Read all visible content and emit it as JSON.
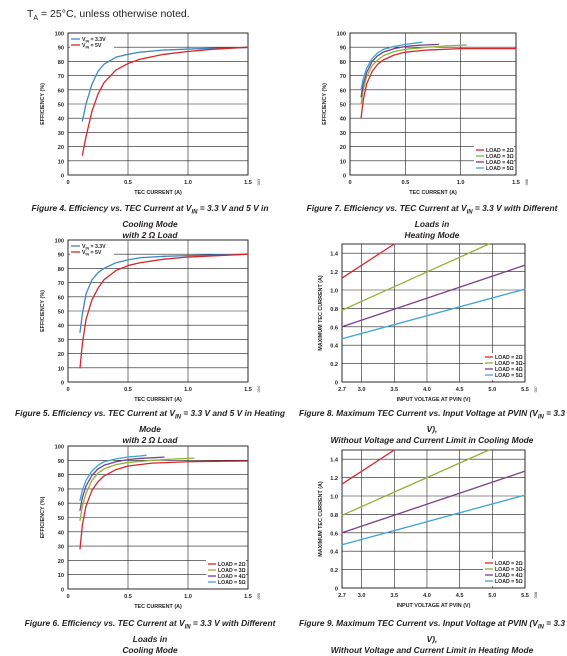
{
  "header": {
    "pre": "T",
    "sub": "A",
    "post": " = 25°C, unless otherwise noted."
  },
  "colors": {
    "red": "#d7262b",
    "green": "#8db33a",
    "purple": "#7a3e8f",
    "blue": "#3f88c5",
    "sky": "#3ea3d9",
    "grid": "#231f20"
  },
  "chart_data": [
    {
      "id": "fig4",
      "type": "line",
      "caption": {
        "a": "Figure 4. Efficiency vs. TEC Current at V",
        "sub": "IN",
        "b": " = 3.3 V and 5 V in Cooling Mode",
        "line2": "with 2 Ω Load"
      },
      "xlabel": "TEC CURRENT (A)",
      "ylabel": "EFFICIENCY (%)",
      "xlim": [
        0,
        1.5
      ],
      "ylim": [
        0,
        100
      ],
      "xticks": [
        0,
        0.5,
        1.0,
        1.5
      ],
      "xtick_labels": [
        "0",
        "0.5",
        "1.0",
        "1.5"
      ],
      "yticks": [
        0,
        10,
        20,
        30,
        40,
        50,
        60,
        70,
        80,
        90,
        100
      ],
      "ytick_labels": [
        "0",
        "10",
        "20",
        "30",
        "40",
        "50",
        "60",
        "70",
        "80",
        "90",
        "100"
      ],
      "grid": true,
      "legend_position": "top-left",
      "side_label": "003",
      "series": [
        {
          "name": "VIN = 3.3V",
          "label_main": "V",
          "label_sub": "IN",
          "label_rest": " = 3.3V",
          "color": "#3f88c5",
          "x": [
            0.12,
            0.15,
            0.2,
            0.25,
            0.3,
            0.4,
            0.5,
            0.6,
            0.8,
            1.0,
            1.2,
            1.5
          ],
          "y": [
            38,
            50,
            64,
            73,
            78,
            83,
            85,
            86.5,
            88,
            88.7,
            89.2,
            89.7
          ]
        },
        {
          "name": "VIN = 5V",
          "label_main": "V",
          "label_sub": "IN",
          "label_rest": " = 5V",
          "color": "#d7262b",
          "x": [
            0.12,
            0.15,
            0.2,
            0.25,
            0.3,
            0.4,
            0.5,
            0.6,
            0.8,
            1.0,
            1.2,
            1.5
          ],
          "y": [
            14,
            27,
            45,
            57,
            65,
            74,
            78.5,
            81.5,
            85,
            87,
            88.5,
            90
          ]
        }
      ]
    },
    {
      "id": "fig7",
      "type": "line",
      "caption": {
        "a": "Figure 7. Efficiency vs. TEC Current at V",
        "sub": "IN",
        "b": " = 3.3 V with Different Loads in",
        "line2": "Heating Mode"
      },
      "xlabel": "TEC CURRENT (A)",
      "ylabel": "EFFICIENCY (%)",
      "xlim": [
        0,
        1.5
      ],
      "ylim": [
        0,
        100
      ],
      "xticks": [
        0,
        0.5,
        1.0,
        1.5
      ],
      "xtick_labels": [
        "0",
        "0.5",
        "1.0",
        "1.5"
      ],
      "yticks": [
        0,
        10,
        20,
        30,
        40,
        50,
        60,
        70,
        80,
        90,
        100
      ],
      "ytick_labels": [
        "0",
        "10",
        "20",
        "30",
        "40",
        "50",
        "60",
        "70",
        "80",
        "90",
        "100"
      ],
      "grid": true,
      "legend_position": "bottom-right",
      "side_label": "006",
      "series": [
        {
          "name": "LOAD = 2Ω",
          "color": "#d7262b",
          "x": [
            0.1,
            0.12,
            0.15,
            0.2,
            0.25,
            0.3,
            0.4,
            0.5,
            0.7,
            1.0,
            1.2,
            1.5
          ],
          "y": [
            40,
            53,
            64,
            73,
            78,
            81,
            84.5,
            86.5,
            88,
            89,
            89,
            89
          ]
        },
        {
          "name": "LOAD = 3Ω",
          "color": "#8db33a",
          "x": [
            0.1,
            0.12,
            0.15,
            0.2,
            0.25,
            0.3,
            0.4,
            0.5,
            0.7,
            0.9,
            1.05
          ],
          "y": [
            50,
            60,
            69,
            77,
            81,
            84,
            87,
            88.5,
            90,
            91,
            91.5
          ]
        },
        {
          "name": "LOAD = 4Ω",
          "color": "#7a3e8f",
          "x": [
            0.1,
            0.12,
            0.15,
            0.2,
            0.25,
            0.3,
            0.4,
            0.5,
            0.6,
            0.8
          ],
          "y": [
            55,
            64,
            72,
            80,
            84,
            86.5,
            89,
            90.5,
            91.3,
            92
          ]
        },
        {
          "name": "LOAD = 5Ω",
          "color": "#3ea3d9",
          "x": [
            0.1,
            0.12,
            0.15,
            0.2,
            0.25,
            0.3,
            0.4,
            0.5,
            0.6,
            0.65
          ],
          "y": [
            60,
            68,
            75,
            82,
            86,
            88.5,
            90.5,
            92,
            93,
            93.5
          ]
        }
      ]
    },
    {
      "id": "fig5",
      "type": "line",
      "caption": {
        "a": "Figure 5. Efficiency vs. TEC Current at V",
        "sub": "IN",
        "b": " = 3.3 V and 5 V in Heating Mode",
        "line2": "with 2 Ω Load"
      },
      "xlabel": "TEC CURRENT (A)",
      "ylabel": "EFFICIENCY (%)",
      "xlim": [
        0,
        1.5
      ],
      "ylim": [
        0,
        100
      ],
      "xticks": [
        0,
        0.5,
        1.0,
        1.5
      ],
      "xtick_labels": [
        "0",
        "0.5",
        "1.0",
        "1.5"
      ],
      "yticks": [
        0,
        10,
        20,
        30,
        40,
        50,
        60,
        70,
        80,
        90,
        100
      ],
      "ytick_labels": [
        "0",
        "10",
        "20",
        "30",
        "40",
        "50",
        "60",
        "70",
        "80",
        "90",
        "100"
      ],
      "grid": true,
      "legend_position": "top-left",
      "side_label": "004",
      "series": [
        {
          "name": "VIN = 3.3V",
          "label_main": "V",
          "label_sub": "IN",
          "label_rest": " = 3.3V",
          "color": "#3f88c5",
          "x": [
            0.1,
            0.12,
            0.15,
            0.2,
            0.25,
            0.3,
            0.4,
            0.5,
            0.6,
            0.8,
            1.0,
            1.5
          ],
          "y": [
            35,
            48,
            62,
            72,
            77,
            80,
            84,
            86,
            87.5,
            88.5,
            89,
            90
          ]
        },
        {
          "name": "VIN = 5V",
          "label_main": "V",
          "label_sub": "IN",
          "label_rest": " = 5V",
          "color": "#d7262b",
          "x": [
            0.1,
            0.12,
            0.15,
            0.2,
            0.25,
            0.3,
            0.4,
            0.5,
            0.6,
            0.8,
            1.0,
            1.5
          ],
          "y": [
            10,
            27,
            44,
            58,
            66,
            72,
            78.5,
            82,
            84,
            86.5,
            88,
            90
          ]
        }
      ]
    },
    {
      "id": "fig8",
      "type": "line",
      "caption": {
        "a": "Figure 8. Maximum TEC Current vs. Input Voltage at PVIN (V",
        "sub": "IN",
        "b": " = 3.3 V),",
        "line2": "Without Voltage and Current Limit in Cooling Mode"
      },
      "xlabel": "INPUT VOLTAGE AT PVIN (V)",
      "ylabel": "MAXIMUM TEC CURRENT (A)",
      "xlim": [
        2.7,
        5.5
      ],
      "ylim": [
        0,
        1.5
      ],
      "xticks": [
        2.7,
        3.0,
        3.5,
        4.0,
        4.5,
        5.0,
        5.5
      ],
      "xtick_labels": [
        "2.7",
        "3.0",
        "3.5",
        "4.0",
        "4.5",
        "5.0",
        "5.5"
      ],
      "yticks": [
        0,
        0.2,
        0.4,
        0.6,
        0.8,
        1.0,
        1.2,
        1.4
      ],
      "ytick_labels": [
        "0",
        "0.2",
        "0.4",
        "0.6",
        "0.8",
        "1.0",
        "1.2",
        "1.4"
      ],
      "grid": true,
      "legend_position": "bottom-right",
      "side_label": "007",
      "series": [
        {
          "name": "LOAD = 2Ω",
          "color": "#d7262b",
          "x": [
            2.7,
            3.5
          ],
          "y": [
            1.13,
            1.5
          ]
        },
        {
          "name": "LOAD = 3Ω",
          "color": "#8db33a",
          "x": [
            2.7,
            4.95
          ],
          "y": [
            0.78,
            1.5
          ]
        },
        {
          "name": "LOAD = 4Ω",
          "color": "#7a3e8f",
          "x": [
            2.7,
            5.5
          ],
          "y": [
            0.6,
            1.27
          ]
        },
        {
          "name": "LOAD = 5Ω",
          "color": "#3ea3d9",
          "x": [
            2.7,
            5.5
          ],
          "y": [
            0.47,
            1.01
          ]
        }
      ]
    },
    {
      "id": "fig6",
      "type": "line",
      "caption": {
        "a": "Figure 6. Efficiency vs. TEC Current at V",
        "sub": "IN",
        "b": " = 3.3 V with Different Loads in",
        "line2": "Cooling Mode"
      },
      "xlabel": "TEC CURRENT (A)",
      "ylabel": "EFFICIENCY (%)",
      "xlim": [
        0,
        1.5
      ],
      "ylim": [
        0,
        100
      ],
      "xticks": [
        0,
        0.5,
        1.0,
        1.5
      ],
      "xtick_labels": [
        "0",
        "0.5",
        "1.0",
        "1.5"
      ],
      "yticks": [
        0,
        10,
        20,
        30,
        40,
        50,
        60,
        70,
        80,
        90,
        100
      ],
      "ytick_labels": [
        "0",
        "10",
        "20",
        "30",
        "40",
        "50",
        "60",
        "70",
        "80",
        "90",
        "100"
      ],
      "grid": true,
      "legend_position": "bottom-right",
      "side_label": "005",
      "series": [
        {
          "name": "LOAD = 2Ω",
          "color": "#d7262b",
          "x": [
            0.1,
            0.12,
            0.15,
            0.2,
            0.25,
            0.3,
            0.4,
            0.5,
            0.7,
            1.0,
            1.2,
            1.5
          ],
          "y": [
            28,
            45,
            58,
            69,
            75,
            79,
            83.5,
            86,
            88,
            89,
            89.3,
            89.5
          ]
        },
        {
          "name": "LOAD = 3Ω",
          "color": "#8db33a",
          "x": [
            0.1,
            0.12,
            0.15,
            0.2,
            0.25,
            0.3,
            0.4,
            0.5,
            0.7,
            0.9,
            1.05
          ],
          "y": [
            48,
            58,
            67,
            76,
            81,
            84,
            87,
            88.5,
            90,
            91,
            91.5
          ]
        },
        {
          "name": "LOAD = 4Ω",
          "color": "#7a3e8f",
          "x": [
            0.1,
            0.12,
            0.15,
            0.2,
            0.25,
            0.3,
            0.4,
            0.5,
            0.6,
            0.8
          ],
          "y": [
            55,
            64,
            72,
            79.5,
            84,
            86.5,
            89,
            90.5,
            91.3,
            92.2
          ]
        },
        {
          "name": "LOAD = 5Ω",
          "color": "#3ea3d9",
          "x": [
            0.1,
            0.12,
            0.15,
            0.2,
            0.25,
            0.3,
            0.4,
            0.5,
            0.6,
            0.65
          ],
          "y": [
            62,
            69,
            76,
            82.5,
            86.5,
            89,
            91,
            92.3,
            93,
            93.5
          ]
        }
      ]
    },
    {
      "id": "fig9",
      "type": "line",
      "caption": {
        "a": "Figure 9. Maximum TEC Current vs. Input Voltage at PVIN (V",
        "sub": "IN",
        "b": " = 3.3 V),",
        "line2": "Without Voltage and Current Limit in Heating Mode"
      },
      "xlabel": "INPUT VOLTAGE AT PVIN (V)",
      "ylabel": "MAXIMUM TEC CURRENT (A)",
      "xlim": [
        2.7,
        5.5
      ],
      "ylim": [
        0,
        1.5
      ],
      "xticks": [
        2.7,
        3.0,
        3.5,
        4.0,
        4.5,
        5.0,
        5.5
      ],
      "xtick_labels": [
        "2.7",
        "3.0",
        "3.5",
        "4.0",
        "4.5",
        "5.0",
        "5.5"
      ],
      "yticks": [
        0,
        0.2,
        0.4,
        0.6,
        0.8,
        1.0,
        1.2,
        1.4
      ],
      "ytick_labels": [
        "0",
        "0.2",
        "0.4",
        "0.6",
        "0.8",
        "1.0",
        "1.2",
        "1.4"
      ],
      "grid": true,
      "legend_position": "bottom-right",
      "side_label": "008",
      "series": [
        {
          "name": "LOAD = 2Ω",
          "color": "#d7262b",
          "x": [
            2.7,
            3.5
          ],
          "y": [
            1.13,
            1.5
          ]
        },
        {
          "name": "LOAD = 3Ω",
          "color": "#8db33a",
          "x": [
            2.7,
            4.95
          ],
          "y": [
            0.79,
            1.5
          ]
        },
        {
          "name": "LOAD = 4Ω",
          "color": "#7a3e8f",
          "x": [
            2.7,
            5.5
          ],
          "y": [
            0.6,
            1.27
          ]
        },
        {
          "name": "LOAD = 5Ω",
          "color": "#3ea3d9",
          "x": [
            2.7,
            5.5
          ],
          "y": [
            0.47,
            1.01
          ]
        }
      ]
    }
  ]
}
